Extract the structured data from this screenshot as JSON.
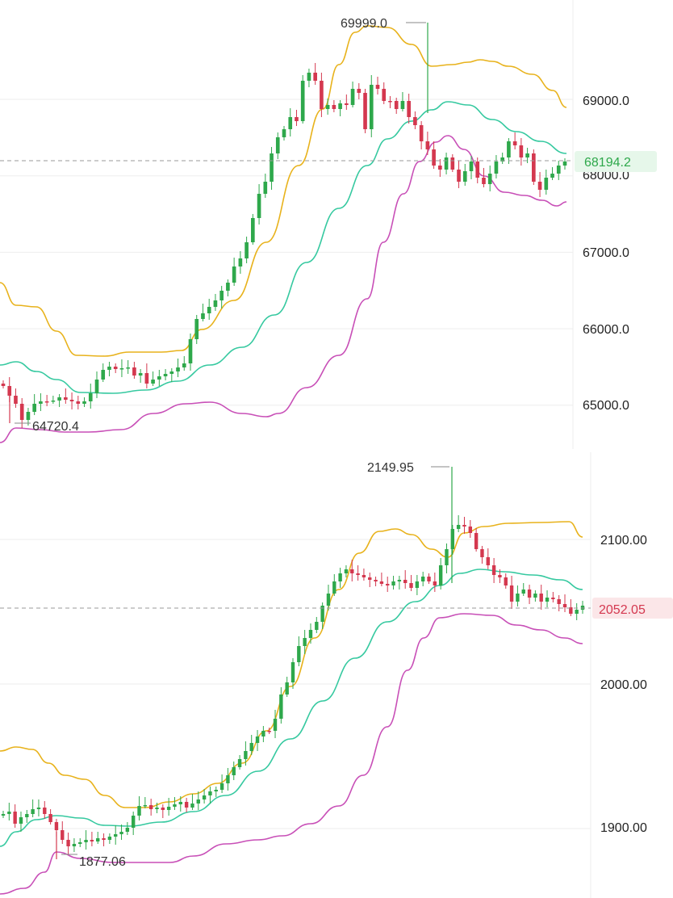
{
  "colors": {
    "up": "#2ea84b",
    "down": "#d4384f",
    "upper_band": "#e8b21b",
    "middle_band": "#36c9a0",
    "lower_band": "#c84fb7",
    "grid": "#eeeeee",
    "price_line": "#9a9a9a",
    "green_tag_bg": "#e6f7ea",
    "green_tag_fg": "#2ea84b",
    "red_tag_bg": "#fbe6e8",
    "red_tag_fg": "#d4384f"
  },
  "chart_data": [
    {
      "type": "candlestick",
      "title": "",
      "ylim": [
        64500,
        70250
      ],
      "y_ticks": [
        {
          "value": 69000,
          "label": "69000.0"
        },
        {
          "value": 68000,
          "label": "68000.0"
        },
        {
          "value": 67000,
          "label": "67000.0"
        },
        {
          "value": 66000,
          "label": "66000.0"
        },
        {
          "value": 65000,
          "label": "65000.0"
        }
      ],
      "high_label": "69999.0",
      "low_label": "64720.4",
      "current_price": {
        "value": 68194.2,
        "label": "68194.2",
        "direction": "up"
      },
      "start": [
        65250,
        65150
      ],
      "drift": [
        -80,
        80,
        60,
        -20,
        50,
        -10,
        60,
        -40,
        120,
        200,
        150,
        -30,
        40,
        20,
        -50,
        40,
        -70,
        -20,
        60,
        40,
        40,
        60,
        200,
        220,
        180,
        150,
        70,
        150,
        30,
        120,
        120,
        230,
        150,
        300,
        120,
        220,
        120,
        160,
        170,
        200,
        190,
        140,
        180,
        -150,
        150,
        -40,
        -80,
        10,
        -110,
        150,
        110,
        -200,
        100,
        60,
        60,
        -270,
        -90,
        -140,
        -230,
        -230,
        -60,
        200,
        -60,
        -50,
        -110,
        240,
        -70,
        50,
        -140,
        -270,
        100,
        -10,
        140,
        80,
        -20
      ],
      "upper_band": [
        65500,
        65350,
        65300,
        65250,
        65100,
        65000,
        64950,
        64900,
        64900,
        64950,
        65000,
        65050,
        65050,
        65100,
        65100,
        65100,
        65100,
        65150,
        65250,
        65400,
        65600,
        65850,
        66150,
        66450,
        66800,
        67150,
        67500,
        67850,
        68200,
        68550,
        68850,
        69200,
        69500,
        69800,
        69950,
        69950,
        69950,
        69900,
        69800,
        69700,
        69600,
        69500,
        69450,
        69500,
        69550,
        69550,
        69500,
        69500,
        69450,
        69300,
        69150,
        69000
      ]
    },
    {
      "type": "candlestick",
      "title": "",
      "ylim": [
        1880,
        2155
      ],
      "y_ticks": [
        {
          "value": 2100,
          "label": "2100.00"
        },
        {
          "value": 2000,
          "label": "2000.00"
        },
        {
          "value": 1900,
          "label": "1900.00"
        }
      ],
      "high_label": "2149.95",
      "low_label": "1877.06",
      "current_price": {
        "value": 2052.05,
        "label": "2052.05",
        "direction": "down"
      }
    }
  ]
}
